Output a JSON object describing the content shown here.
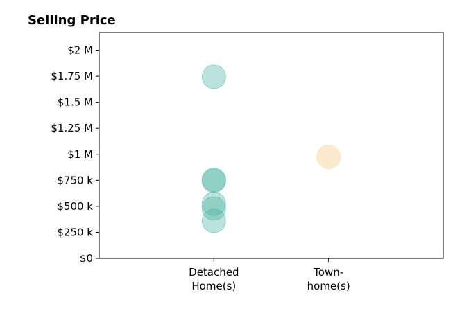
{
  "chart_data": {
    "type": "scatter",
    "title": "Selling Price",
    "xlabel": "",
    "ylabel": "",
    "categories": [
      [
        "Detached",
        "Home(s)"
      ],
      [
        "Town-",
        "home(s)"
      ]
    ],
    "yticks": [
      0,
      250000,
      500000,
      750000,
      1000000,
      1250000,
      1500000,
      1750000,
      2000000
    ],
    "ytick_labels": [
      "$0",
      "$250 k",
      "$500 k",
      "$750 k",
      "$1 M",
      "$1.25 M",
      "$1.5 M",
      "$1.75 M",
      "$2 M"
    ],
    "ylim": [
      0,
      2170000
    ],
    "xlim": [
      -1,
      2
    ],
    "grid": false,
    "series": [
      {
        "category_index": 0,
        "color": "#4bb3a2",
        "opacity": 0.38,
        "values": [
          1745000,
          755000,
          745000,
          525000,
          480000,
          360000
        ]
      },
      {
        "category_index": 1,
        "color": "#f5dba7",
        "opacity": 0.55,
        "values": [
          975000
        ]
      }
    ]
  }
}
